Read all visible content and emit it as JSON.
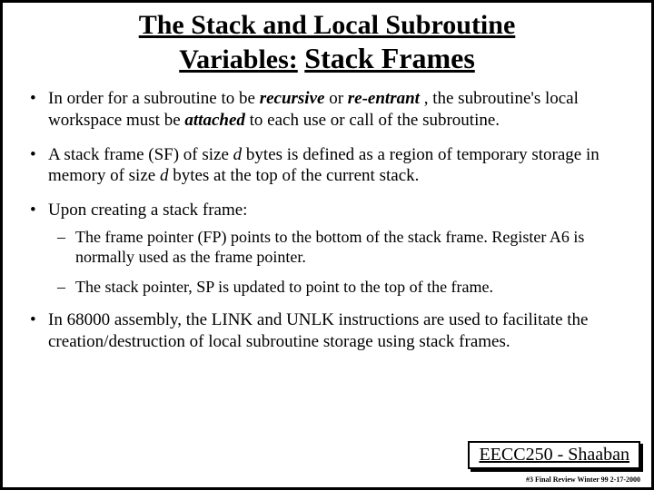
{
  "title": {
    "line1": "The Stack and Local Subroutine",
    "line2_a": "Variables:",
    "line2_b": "Stack Frames"
  },
  "bullets": {
    "b1": {
      "t1": "In order for a subroutine to be ",
      "t2": "recursive",
      "t3": " or ",
      "t4": "re-entrant",
      "t5": " , the subroutine's local workspace must be ",
      "t6": "attached",
      "t7": " to each use or call of the subroutine."
    },
    "b2": {
      "t1": "A stack frame (SF) of size ",
      "t2": "d",
      "t3": " bytes is defined as a region of temporary storage in memory of size ",
      "t4": "d",
      "t5": " bytes at the top of the current stack."
    },
    "b3": {
      "t1": "Upon creating a stack frame:",
      "s1": "The frame pointer (FP) points to the bottom of the stack frame. Register A6 is normally used as the frame pointer.",
      "s2": "The stack pointer, SP is updated to point to the top of the frame."
    },
    "b4": {
      "t1": "In 68000 assembly, the LINK and UNLK instructions are used to facilitate the creation/destruction of local subroutine storage using stack frames."
    }
  },
  "footer": {
    "box": "EECC250 - Shaaban",
    "small": "#3 Final Review  Winter 99  2-17-2000"
  }
}
